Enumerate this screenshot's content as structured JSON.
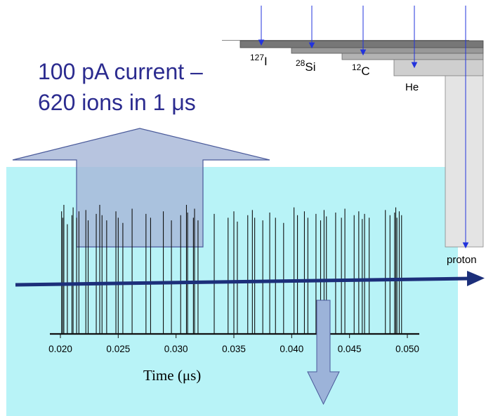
{
  "headline": {
    "line1": "100 pA current –",
    "line2": "620 ions in 1 μs"
  },
  "ions": [
    {
      "mass": "127",
      "symbol": "I"
    },
    {
      "mass": "28",
      "symbol": "Si"
    },
    {
      "mass": "12",
      "symbol": "C"
    },
    {
      "mass": "",
      "symbol": "He"
    },
    {
      "mass": "",
      "symbol": "proton"
    }
  ],
  "chart_data": {
    "type": "line",
    "xlabel": "Time (μs)",
    "ylabel": "",
    "xlim": [
      0.0195,
      0.0505
    ],
    "xticks": [
      "0.020",
      "0.025",
      "0.030",
      "0.035",
      "0.040",
      "0.045",
      "0.050"
    ],
    "pulse_times": [
      0.0201,
      0.0202,
      0.0203,
      0.0206,
      0.021,
      0.0211,
      0.0214,
      0.0216,
      0.0222,
      0.0224,
      0.0231,
      0.0234,
      0.0236,
      0.024,
      0.0248,
      0.025,
      0.0254,
      0.0262,
      0.0274,
      0.0278,
      0.0289,
      0.0296,
      0.0304,
      0.0309,
      0.031,
      0.0315,
      0.0316,
      0.0319,
      0.0333,
      0.0345,
      0.035,
      0.0353,
      0.0362,
      0.0366,
      0.0368,
      0.0375,
      0.0381,
      0.0386,
      0.0393,
      0.0402,
      0.0405,
      0.0411,
      0.0414,
      0.0421,
      0.0425,
      0.0428,
      0.043,
      0.0438,
      0.0443,
      0.0446,
      0.0454,
      0.0458,
      0.0461,
      0.0463,
      0.0467,
      0.0481,
      0.0485,
      0.0489,
      0.049,
      0.0491,
      0.0493,
      0.0495
    ],
    "pulse_heights": [
      0.95,
      0.9,
      1.0,
      0.85,
      0.92,
      0.98,
      0.9,
      0.95,
      0.96,
      0.88,
      0.93,
      1.0,
      0.92,
      0.88,
      0.95,
      0.9,
      0.86,
      0.97,
      0.93,
      0.9,
      0.95,
      0.88,
      0.92,
      1.0,
      0.94,
      0.9,
      0.97,
      0.88,
      0.93,
      0.9,
      0.95,
      0.87,
      0.92,
      0.96,
      0.9,
      0.88,
      0.94,
      0.9,
      0.86,
      0.98,
      0.92,
      0.95,
      0.9,
      0.93,
      0.88,
      0.96,
      0.91,
      0.94,
      0.9,
      0.97,
      0.92,
      0.95,
      0.89,
      0.93,
      0.9,
      0.96,
      0.92,
      0.94,
      0.98,
      0.9,
      0.95,
      0.92
    ]
  },
  "colors": {
    "panel": "#b8f3f7",
    "arrow_fill": "#a7b7d8",
    "arrow_stroke": "#4a5a9a",
    "beam_arrow": "#1c2f7a",
    "down_arrow": "#9cb3d9",
    "ion_arrow": "#2233dd",
    "headline": "#2b2b8f"
  }
}
